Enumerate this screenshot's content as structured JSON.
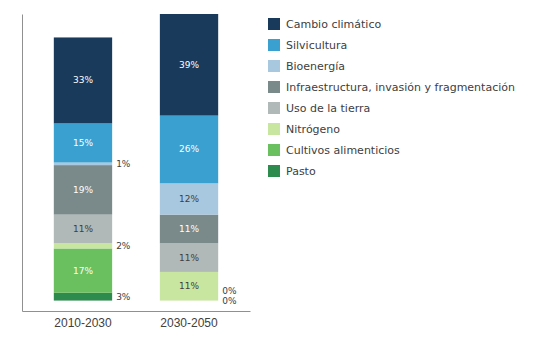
{
  "chart_data": {
    "type": "bar",
    "stacked": true,
    "categories": [
      "2010-2030",
      "2030-2050"
    ],
    "series": [
      {
        "name": "Pasto",
        "color": "#2d8b4e",
        "values": [
          3,
          0
        ],
        "value_labels": [
          "3%",
          "0%"
        ]
      },
      {
        "name": "Cultivos alimenticios",
        "color": "#6abf5e",
        "values": [
          17,
          0
        ],
        "value_labels": [
          "17%",
          "0%"
        ]
      },
      {
        "name": "Nitrógeno",
        "color": "#c8e6a0",
        "values": [
          2,
          11
        ],
        "value_labels": [
          "2%",
          "11%"
        ]
      },
      {
        "name": "Uso de la tierra",
        "color": "#b0b8b8",
        "values": [
          11,
          11
        ],
        "value_labels": [
          "11%",
          "11%"
        ]
      },
      {
        "name": "Infraestructura, invasión y fragmentación",
        "color": "#7a8a8a",
        "values": [
          19,
          11
        ],
        "value_labels": [
          "19%",
          "11%"
        ]
      },
      {
        "name": "Bioenergía",
        "color": "#a8c8e0",
        "values": [
          1,
          12
        ],
        "value_labels": [
          "1%",
          "12%"
        ]
      },
      {
        "name": "Silvicultura",
        "color": "#3aa0d0",
        "values": [
          15,
          26
        ],
        "value_labels": [
          "15%",
          "26%"
        ]
      },
      {
        "name": "Cambio climático",
        "color": "#1a3a5c",
        "values": [
          33,
          39
        ],
        "value_labels": [
          "33%",
          "39%"
        ]
      }
    ],
    "ylim": [
      -4,
      110
    ],
    "tick_labels": "x",
    "data_labels": true,
    "legend": "right",
    "grid": false
  }
}
